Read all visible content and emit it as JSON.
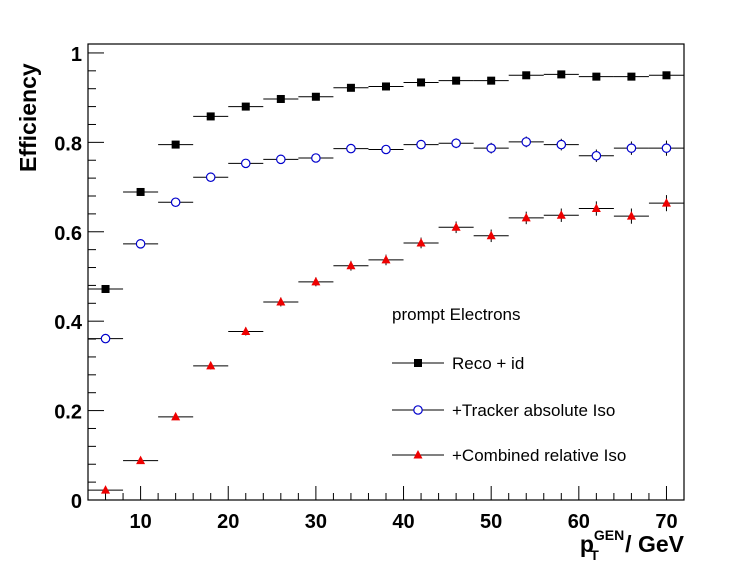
{
  "chart_data": {
    "type": "scatter",
    "title": "",
    "xlabel": {
      "base": "p",
      "sub": "T",
      "sup": "GEN",
      "suffix": " / GeV"
    },
    "ylabel": "Efficiency",
    "xlim": [
      4,
      72
    ],
    "ylim": [
      0,
      1.02
    ],
    "x_ticks": [
      "10",
      "20",
      "30",
      "40",
      "50",
      "60",
      "70"
    ],
    "y_ticks": [
      "0",
      "0.2",
      "0.4",
      "0.6",
      "0.8",
      "1"
    ],
    "legend_title": "prompt Electrons",
    "legend_position": "right-middle",
    "grid": false,
    "x": [
      6,
      10,
      14,
      18,
      22,
      26,
      30,
      34,
      38,
      42,
      46,
      50,
      54,
      58,
      62,
      66,
      70
    ],
    "bin_half_width": 2,
    "series": [
      {
        "name": "Reco + id",
        "marker": "square",
        "color": "#000000",
        "values": [
          0.472,
          0.689,
          0.795,
          0.858,
          0.88,
          0.897,
          0.902,
          0.922,
          0.925,
          0.934,
          0.938,
          0.938,
          0.95,
          0.952,
          0.947,
          0.947,
          0.95
        ],
        "errors": [
          0.006,
          0.005,
          0.004,
          0.004,
          0.004,
          0.004,
          0.004,
          0.004,
          0.004,
          0.004,
          0.004,
          0.004,
          0.004,
          0.004,
          0.004,
          0.004,
          0.004
        ]
      },
      {
        "name": "+Tracker absolute Iso",
        "marker": "circle-open",
        "color": "#0000cc",
        "values": [
          0.361,
          0.573,
          0.666,
          0.722,
          0.753,
          0.762,
          0.765,
          0.786,
          0.784,
          0.795,
          0.798,
          0.787,
          0.801,
          0.795,
          0.77,
          0.787,
          0.787
        ],
        "errors": [
          0.008,
          0.008,
          0.007,
          0.008,
          0.008,
          0.008,
          0.009,
          0.009,
          0.01,
          0.01,
          0.011,
          0.012,
          0.012,
          0.013,
          0.014,
          0.015,
          0.017
        ]
      },
      {
        "name": "+Combined relative Iso",
        "marker": "triangle",
        "color": "#ee0000",
        "values": [
          0.022,
          0.088,
          0.186,
          0.3,
          0.377,
          0.443,
          0.488,
          0.524,
          0.537,
          0.575,
          0.61,
          0.591,
          0.631,
          0.637,
          0.652,
          0.635,
          0.664
        ],
        "errors": [
          0.004,
          0.006,
          0.006,
          0.008,
          0.009,
          0.01,
          0.01,
          0.011,
          0.012,
          0.012,
          0.013,
          0.014,
          0.014,
          0.015,
          0.016,
          0.017,
          0.018
        ]
      }
    ]
  }
}
